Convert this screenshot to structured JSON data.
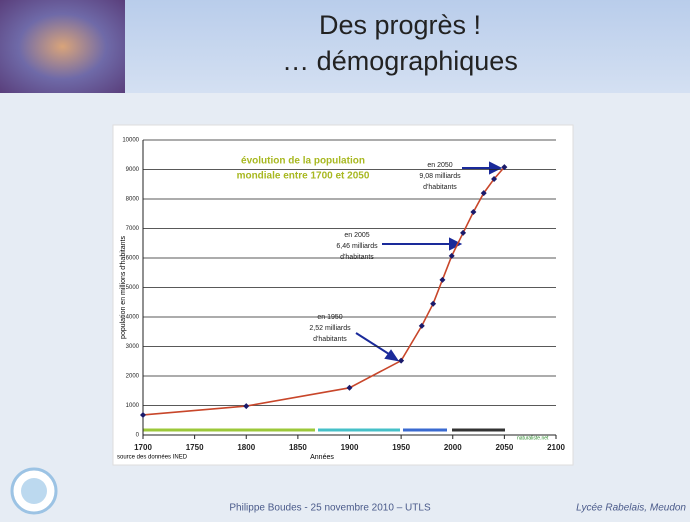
{
  "slide": {
    "title_lines": [
      "Des progrès !",
      "… démographiques"
    ],
    "footer_left": "Philippe Boudes  - 25 novembre 2010 – UTLS",
    "footer_right": "Lycée Rabelais, Meudon"
  },
  "chart_data": {
    "type": "line",
    "title_lines": [
      "évolution de la population",
      "mondiale entre 1700 et 2050"
    ],
    "y_label": "population en millions d'habitants",
    "x_label": "Années",
    "source": "source des données INED",
    "credit": "naturaliste.net",
    "x": [
      1700,
      1800,
      1900,
      1950,
      1970,
      1981,
      1990,
      1999,
      2010,
      2020,
      2030,
      2040,
      2050
    ],
    "values": [
      680,
      980,
      1600,
      2520,
      3700,
      4450,
      5260,
      6070,
      6850,
      7560,
      8200,
      8680,
      9080
    ],
    "line_color": "#c8462a",
    "marker_color": "#1a1a6a",
    "xlim": [
      1700,
      2100
    ],
    "xticks": [
      1700,
      1750,
      1800,
      1850,
      1900,
      1950,
      2000,
      2050,
      2100
    ],
    "ylim": [
      0,
      10000
    ],
    "yticks": [
      0,
      1000,
      2000,
      3000,
      4000,
      5000,
      6000,
      7000,
      8000,
      9000,
      10000
    ],
    "grid": true,
    "annotations": [
      [
        "en 1950",
        "2,52 milliards",
        "d'habitants"
      ],
      [
        "en 2005",
        "6,46 milliards",
        "d'habitants"
      ],
      [
        "en 2050",
        "9,08 milliards",
        "d'habitants"
      ]
    ]
  }
}
